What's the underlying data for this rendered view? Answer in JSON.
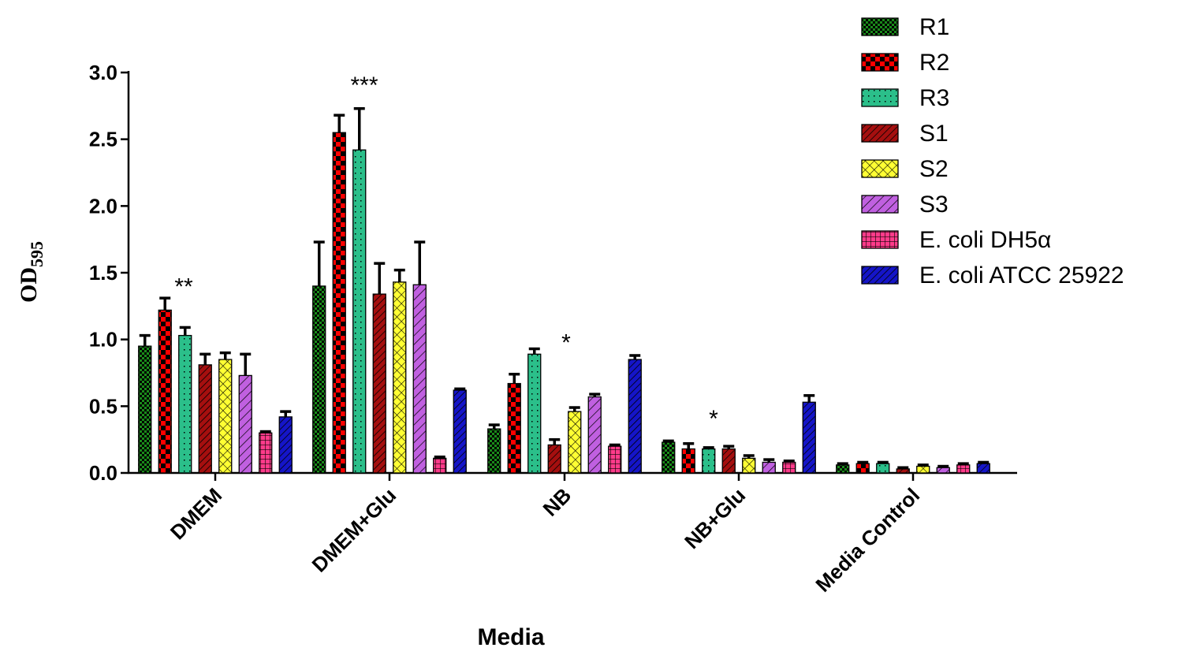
{
  "chart_data": {
    "type": "bar",
    "xlabel": "Media",
    "ylabel": "OD",
    "ylabel_subscript": "595",
    "ylim": [
      0,
      3.0
    ],
    "yticks": [
      "0.0",
      "0.5",
      "1.0",
      "1.5",
      "2.0",
      "2.5",
      "3.0"
    ],
    "ytick_values": [
      0,
      0.5,
      1.0,
      1.5,
      2.0,
      2.5,
      3.0
    ],
    "grid": false,
    "legend_position": "top-right",
    "categories": [
      "DMEM",
      "DMEM+Glu",
      "NB",
      "NB+Glu",
      "Media Control"
    ],
    "series": [
      {
        "name": "R1",
        "color": "#1a8a1a",
        "pattern": "checker-small",
        "values": [
          0.95,
          1.4,
          0.33,
          0.23,
          0.06
        ],
        "errors": [
          0.08,
          0.33,
          0.03,
          0.01,
          0.01
        ]
      },
      {
        "name": "R2",
        "color": "#ff0000",
        "pattern": "checker-large",
        "values": [
          1.22,
          2.55,
          0.67,
          0.18,
          0.07
        ],
        "errors": [
          0.09,
          0.13,
          0.07,
          0.04,
          0.01
        ]
      },
      {
        "name": "R3",
        "color": "#2bbf8a",
        "pattern": "dots",
        "values": [
          1.03,
          2.42,
          0.89,
          0.18,
          0.07
        ],
        "errors": [
          0.06,
          0.31,
          0.04,
          0.01,
          0.01
        ]
      },
      {
        "name": "S1",
        "color": "#a50f0f",
        "pattern": "diag-dense",
        "values": [
          0.81,
          1.34,
          0.21,
          0.18,
          0.03
        ],
        "errors": [
          0.08,
          0.23,
          0.04,
          0.02,
          0.01
        ]
      },
      {
        "name": "S2",
        "color": "#ffff33",
        "pattern": "crosshatch",
        "values": [
          0.85,
          1.43,
          0.46,
          0.11,
          0.05
        ],
        "errors": [
          0.05,
          0.09,
          0.03,
          0.02,
          0.01
        ]
      },
      {
        "name": "S3",
        "color": "#c060e0",
        "pattern": "diag-wide",
        "values": [
          0.73,
          1.41,
          0.57,
          0.08,
          0.04
        ],
        "errors": [
          0.16,
          0.32,
          0.02,
          0.02,
          0.01
        ]
      },
      {
        "name": "E. coli DH5α",
        "color": "#ff3b8a",
        "pattern": "grid",
        "values": [
          0.3,
          0.11,
          0.2,
          0.08,
          0.06
        ],
        "errors": [
          0.01,
          0.01,
          0.01,
          0.01,
          0.01
        ]
      },
      {
        "name": "E. coli ATCC 25922",
        "color": "#1515c8",
        "pattern": "diag-dense",
        "values": [
          0.42,
          0.62,
          0.85,
          0.53,
          0.07
        ],
        "errors": [
          0.04,
          0.01,
          0.03,
          0.05,
          0.01
        ]
      }
    ],
    "annotations": [
      {
        "category": "DMEM",
        "text": "**",
        "y": 1.42
      },
      {
        "category": "DMEM+Glu",
        "text": "***",
        "y": 2.93
      },
      {
        "category": "NB",
        "text": "*",
        "y": 1.0
      },
      {
        "category": "NB+Glu",
        "text": "*",
        "y": 0.43
      }
    ]
  }
}
